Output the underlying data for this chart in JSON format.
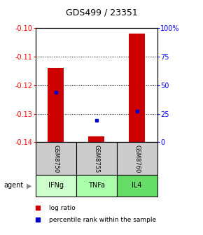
{
  "title": "GDS499 / 23351",
  "samples": [
    "GSM8750",
    "GSM8755",
    "GSM8760"
  ],
  "agents": [
    "IFNg",
    "TNFa",
    "IL4"
  ],
  "log_ratios": [
    -0.114,
    -0.138,
    -0.102
  ],
  "percentile_ranks": [
    44,
    19,
    27
  ],
  "baseline": -0.14,
  "ylim_left": [
    -0.14,
    -0.1
  ],
  "ylim_right": [
    0,
    100
  ],
  "yticks_left": [
    -0.14,
    -0.13,
    -0.12,
    -0.11,
    -0.1
  ],
  "yticks_right": [
    0,
    25,
    50,
    75,
    100
  ],
  "ytick_labels_right": [
    "0",
    "25",
    "50",
    "75",
    "100%"
  ],
  "bar_color": "#cc0000",
  "dot_color": "#0000cc",
  "agent_colors": [
    "#ccffcc",
    "#aaffaa",
    "#66dd66"
  ],
  "sample_bg_color": "#cccccc",
  "bar_width": 0.4,
  "legend_bar_label": "log ratio",
  "legend_dot_label": "percentile rank within the sample",
  "agent_label": "agent"
}
